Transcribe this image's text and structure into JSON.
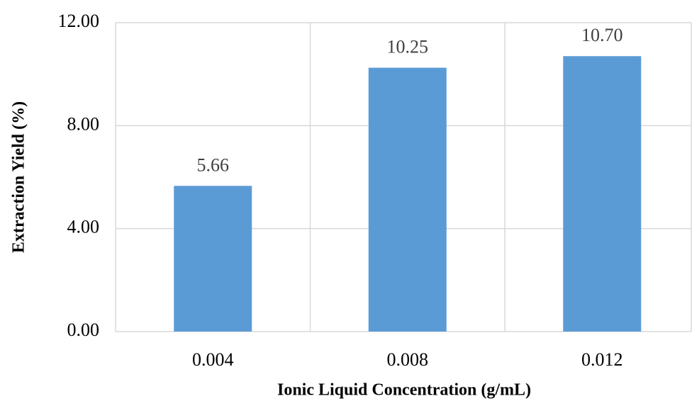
{
  "chart_data": {
    "type": "bar",
    "x_label": "Ionic Liquid Concentration (g/mL)",
    "y_label": "Extraction Yield (%)",
    "categories": [
      "0.004",
      "0.008",
      "0.012"
    ],
    "values": [
      5.66,
      10.25,
      10.7
    ],
    "value_labels": [
      "5.66",
      "10.25",
      "10.70"
    ],
    "color": "#5b9bd5",
    "ylim": [
      0,
      12
    ],
    "yticks": [
      {
        "value": 0,
        "label": "0.00"
      },
      {
        "value": 4,
        "label": "4.00"
      },
      {
        "value": 8,
        "label": "8.00"
      },
      {
        "value": 12,
        "label": "12.00"
      }
    ],
    "grid": true
  }
}
